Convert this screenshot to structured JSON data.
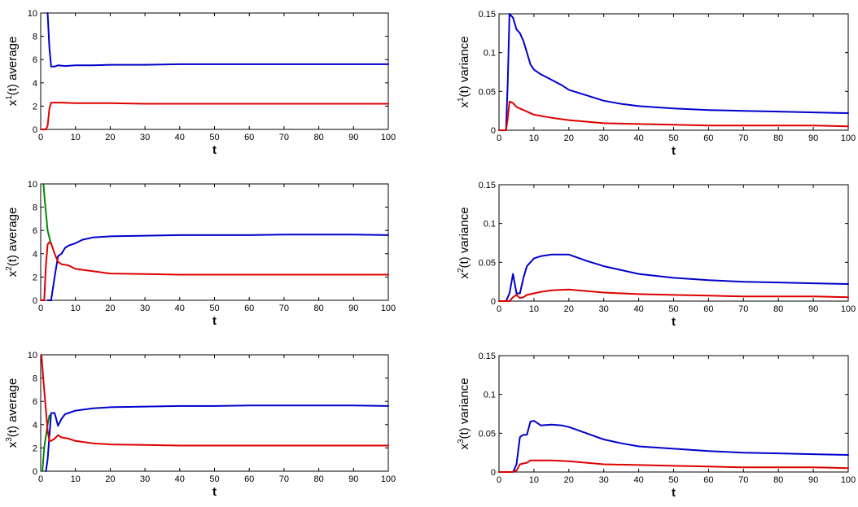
{
  "colors": {
    "blue": "#0000cc",
    "red": "#dd0000",
    "green": "#008800"
  },
  "chart_data": [
    {
      "type": "line",
      "xlabel": "t",
      "ylabel_parts": [
        "x",
        "1",
        "(t) average"
      ],
      "xlim": [
        0,
        100
      ],
      "ylim": [
        0,
        10
      ],
      "xticks": [
        0,
        10,
        20,
        30,
        40,
        50,
        60,
        70,
        80,
        90,
        100
      ],
      "yticks": [
        0,
        2,
        4,
        6,
        8,
        10
      ],
      "ytick_labels": [
        "0",
        "2",
        "4",
        "6",
        "8",
        "10"
      ],
      "series": [
        {
          "name": "blue",
          "color": "#0000cc",
          "x": [
            2,
            2.5,
            3,
            4,
            5,
            7,
            10,
            15,
            20,
            30,
            40,
            50,
            60,
            70,
            80,
            90,
            100
          ],
          "y": [
            10,
            7,
            5.4,
            5.4,
            5.5,
            5.45,
            5.5,
            5.5,
            5.55,
            5.55,
            5.6,
            5.6,
            5.6,
            5.6,
            5.6,
            5.6,
            5.6
          ]
        },
        {
          "name": "red",
          "color": "#dd0000",
          "x": [
            0,
            1,
            1.5,
            2,
            2.5,
            3,
            4,
            6,
            10,
            20,
            30,
            40,
            50,
            60,
            70,
            80,
            90,
            100
          ],
          "y": [
            0,
            0,
            0,
            0.3,
            1.8,
            2.3,
            2.3,
            2.3,
            2.25,
            2.25,
            2.2,
            2.2,
            2.2,
            2.2,
            2.2,
            2.2,
            2.2,
            2.2
          ]
        }
      ]
    },
    {
      "type": "line",
      "xlabel": "t",
      "ylabel_parts": [
        "x",
        "1",
        "(t) variance"
      ],
      "xlim": [
        0,
        100
      ],
      "ylim": [
        0,
        0.15
      ],
      "xticks": [
        0,
        10,
        20,
        30,
        40,
        50,
        60,
        70,
        80,
        90,
        100
      ],
      "yticks": [
        0,
        0.05,
        0.1,
        0.15
      ],
      "ytick_labels": [
        "0",
        "0.05",
        "0.1",
        "0.15"
      ],
      "series": [
        {
          "name": "blue",
          "color": "#0000cc",
          "x": [
            0,
            1,
            2,
            2.5,
            3,
            4,
            5,
            6,
            7,
            8,
            9,
            10,
            12,
            15,
            18,
            20,
            25,
            30,
            35,
            40,
            50,
            60,
            70,
            80,
            90,
            100
          ],
          "y": [
            0,
            0,
            0,
            0.06,
            0.15,
            0.145,
            0.13,
            0.125,
            0.115,
            0.1,
            0.085,
            0.078,
            0.072,
            0.065,
            0.058,
            0.052,
            0.045,
            0.038,
            0.034,
            0.031,
            0.028,
            0.026,
            0.025,
            0.024,
            0.023,
            0.022
          ]
        },
        {
          "name": "red",
          "color": "#dd0000",
          "x": [
            0,
            1,
            2,
            2.5,
            3,
            4,
            5,
            6,
            8,
            10,
            15,
            20,
            25,
            30,
            40,
            50,
            60,
            70,
            80,
            90,
            100
          ],
          "y": [
            0,
            0,
            0,
            0.015,
            0.037,
            0.035,
            0.03,
            0.028,
            0.024,
            0.02,
            0.016,
            0.013,
            0.011,
            0.009,
            0.008,
            0.007,
            0.006,
            0.006,
            0.006,
            0.006,
            0.005
          ]
        }
      ]
    },
    {
      "type": "line",
      "xlabel": "t",
      "ylabel_parts": [
        "x",
        "2",
        "(t) average"
      ],
      "xlim": [
        0,
        100
      ],
      "ylim": [
        0,
        10
      ],
      "xticks": [
        0,
        10,
        20,
        30,
        40,
        50,
        60,
        70,
        80,
        90,
        100
      ],
      "yticks": [
        0,
        2,
        4,
        6,
        8,
        10
      ],
      "ytick_labels": [
        "0",
        "2",
        "4",
        "6",
        "8",
        "10"
      ],
      "series": [
        {
          "name": "green",
          "color": "#008800",
          "x": [
            0.8,
            1.2,
            2,
            3
          ],
          "y": [
            10,
            8.5,
            6,
            4.8
          ]
        },
        {
          "name": "blue",
          "color": "#0000cc",
          "x": [
            2,
            3,
            4,
            5,
            6,
            7,
            8,
            10,
            12,
            15,
            20,
            30,
            40,
            50,
            60,
            70,
            80,
            90,
            100
          ],
          "y": [
            0,
            0,
            2,
            3.8,
            4.0,
            4.5,
            4.7,
            4.9,
            5.2,
            5.4,
            5.5,
            5.55,
            5.6,
            5.6,
            5.6,
            5.65,
            5.65,
            5.65,
            5.6
          ]
        },
        {
          "name": "red",
          "color": "#dd0000",
          "x": [
            0,
            1,
            1.5,
            2,
            2.5,
            3,
            4,
            5,
            6,
            8,
            10,
            15,
            20,
            30,
            40,
            50,
            60,
            70,
            80,
            90,
            100
          ],
          "y": [
            0,
            0,
            3,
            4.8,
            5.0,
            4.9,
            4.0,
            3.3,
            3.1,
            3.0,
            2.7,
            2.5,
            2.3,
            2.25,
            2.2,
            2.2,
            2.2,
            2.2,
            2.2,
            2.2,
            2.2
          ]
        }
      ]
    },
    {
      "type": "line",
      "xlabel": "t",
      "ylabel_parts": [
        "x",
        "2",
        "(t) variance"
      ],
      "xlim": [
        0,
        100
      ],
      "ylim": [
        0,
        0.15
      ],
      "xticks": [
        0,
        10,
        20,
        30,
        40,
        50,
        60,
        70,
        80,
        90,
        100
      ],
      "yticks": [
        0,
        0.05,
        0.1,
        0.15
      ],
      "ytick_labels": [
        "0",
        "0.05",
        "0.1",
        "0.15"
      ],
      "series": [
        {
          "name": "blue",
          "color": "#0000cc",
          "x": [
            0,
            2,
            3,
            4,
            5,
            6,
            7,
            8,
            9,
            10,
            12,
            15,
            18,
            20,
            25,
            30,
            40,
            50,
            60,
            70,
            80,
            90,
            100
          ],
          "y": [
            0,
            0,
            0.01,
            0.035,
            0.01,
            0.01,
            0.03,
            0.045,
            0.05,
            0.055,
            0.058,
            0.06,
            0.06,
            0.06,
            0.052,
            0.045,
            0.035,
            0.03,
            0.027,
            0.025,
            0.024,
            0.023,
            0.022
          ]
        },
        {
          "name": "red",
          "color": "#dd0000",
          "x": [
            0,
            3,
            4,
            5,
            6,
            7,
            8,
            10,
            12,
            15,
            20,
            25,
            30,
            40,
            50,
            60,
            70,
            80,
            90,
            100
          ],
          "y": [
            0,
            0,
            0.005,
            0.008,
            0.004,
            0.005,
            0.008,
            0.01,
            0.012,
            0.014,
            0.015,
            0.013,
            0.011,
            0.009,
            0.008,
            0.007,
            0.006,
            0.006,
            0.006,
            0.005
          ]
        }
      ]
    },
    {
      "type": "line",
      "xlabel": "t",
      "ylabel_parts": [
        "x",
        "3",
        "(t) average"
      ],
      "xlim": [
        0,
        100
      ],
      "ylim": [
        0,
        10
      ],
      "xticks": [
        0,
        10,
        20,
        30,
        40,
        50,
        60,
        70,
        80,
        90,
        100
      ],
      "yticks": [
        0,
        2,
        4,
        6,
        8,
        10
      ],
      "ytick_labels": [
        "0",
        "2",
        "4",
        "6",
        "8",
        "10"
      ],
      "series": [
        {
          "name": "green",
          "color": "#008800",
          "x": [
            0.5,
            1,
            2,
            2.5
          ],
          "y": [
            0,
            2,
            4,
            4.8
          ]
        },
        {
          "name": "blue",
          "color": "#0000cc",
          "x": [
            1.5,
            2,
            3,
            4,
            5,
            6,
            7,
            8,
            10,
            15,
            20,
            30,
            40,
            50,
            60,
            70,
            80,
            90,
            100
          ],
          "y": [
            0,
            1,
            5.0,
            5.0,
            3.9,
            4.5,
            4.9,
            5.0,
            5.2,
            5.4,
            5.5,
            5.55,
            5.6,
            5.6,
            5.65,
            5.65,
            5.65,
            5.65,
            5.6
          ]
        },
        {
          "name": "red",
          "color": "#dd0000",
          "x": [
            0.2,
            1,
            2,
            2.5,
            3,
            4,
            5,
            6,
            8,
            10,
            15,
            20,
            30,
            40,
            50,
            60,
            70,
            80,
            90,
            100
          ],
          "y": [
            10,
            7,
            3.5,
            2.6,
            2.6,
            2.8,
            3.1,
            2.9,
            2.8,
            2.6,
            2.4,
            2.3,
            2.25,
            2.2,
            2.2,
            2.2,
            2.2,
            2.2,
            2.2,
            2.2
          ]
        }
      ]
    },
    {
      "type": "line",
      "xlabel": "t",
      "ylabel_parts": [
        "x",
        "3",
        "(t) variance"
      ],
      "xlim": [
        0,
        100
      ],
      "ylim": [
        0,
        0.15
      ],
      "xticks": [
        0,
        10,
        20,
        30,
        40,
        50,
        60,
        70,
        80,
        90,
        100
      ],
      "yticks": [
        0,
        0.05,
        0.1,
        0.15
      ],
      "ytick_labels": [
        "0",
        "0.05",
        "0.1",
        "0.15"
      ],
      "series": [
        {
          "name": "blue",
          "color": "#0000cc",
          "x": [
            0,
            4,
            5,
            6,
            7,
            8,
            9,
            10,
            12,
            15,
            18,
            20,
            25,
            30,
            35,
            40,
            50,
            60,
            70,
            80,
            90,
            100
          ],
          "y": [
            0,
            0,
            0.01,
            0.045,
            0.048,
            0.048,
            0.065,
            0.066,
            0.06,
            0.061,
            0.06,
            0.058,
            0.05,
            0.042,
            0.037,
            0.033,
            0.03,
            0.027,
            0.025,
            0.024,
            0.023,
            0.022
          ]
        },
        {
          "name": "red",
          "color": "#dd0000",
          "x": [
            0,
            4,
            5,
            6,
            7,
            8,
            9,
            10,
            15,
            20,
            25,
            30,
            40,
            50,
            60,
            70,
            80,
            90,
            100
          ],
          "y": [
            0,
            0,
            0.002,
            0.01,
            0.011,
            0.012,
            0.015,
            0.015,
            0.015,
            0.014,
            0.012,
            0.01,
            0.009,
            0.008,
            0.007,
            0.006,
            0.006,
            0.006,
            0.005
          ]
        }
      ]
    }
  ]
}
